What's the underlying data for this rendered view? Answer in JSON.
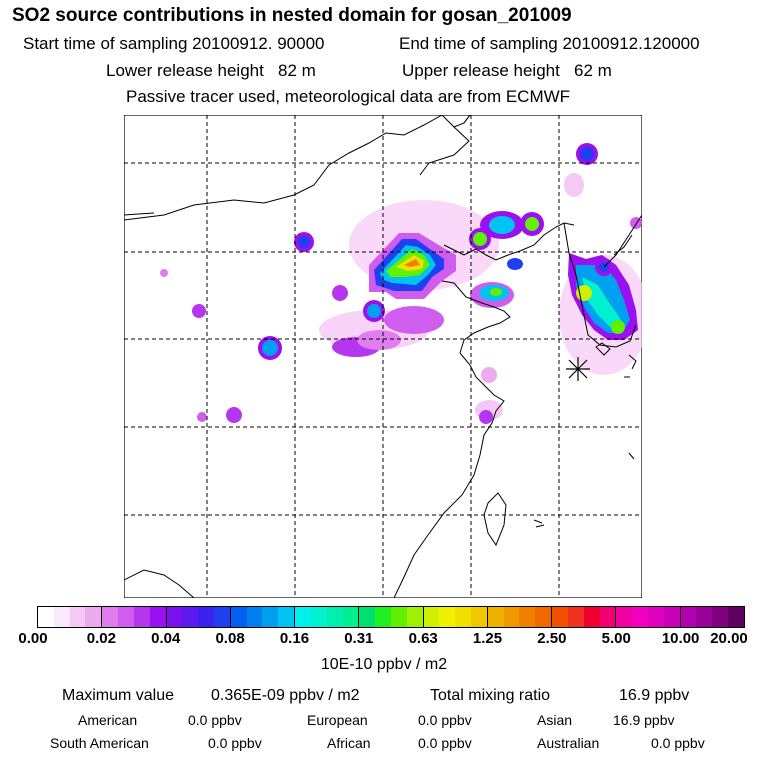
{
  "header": {
    "title": "SO2 source contributions in nested domain for gosan_201009",
    "start_label": "Start time of sampling 20100912. 90000",
    "end_label": "End time of sampling 20100912.120000",
    "lower_label": "Lower release height   82 m",
    "upper_label": "Upper release height   62 m",
    "note": "Passive tracer used, meteorological data are from ECMWF"
  },
  "legend": {
    "ticks": [
      "0.00",
      "0.02",
      "0.04",
      "0.08",
      "0.16",
      "0.31",
      "0.63",
      "1.25",
      "2.50",
      "5.00",
      "10.00",
      "20.00"
    ],
    "units": "10E-10 ppbv / m2",
    "colors": [
      [
        "#ffffff",
        "#fce8fc",
        "#f6c8f6",
        "#eeaaf0"
      ],
      [
        "#e07ef0",
        "#d05cf0",
        "#b636f0",
        "#9a10f0"
      ],
      [
        "#7a10f0",
        "#5a1af0",
        "#3a22f0",
        "#2040f0"
      ],
      [
        "#0060f0",
        "#0080f0",
        "#00a0f0",
        "#00c4f0"
      ],
      [
        "#00f0f0",
        "#00f0d0",
        "#00f0b0",
        "#00f090"
      ],
      [
        "#00e070",
        "#20f020",
        "#60f000",
        "#a0f000"
      ],
      [
        "#d0f000",
        "#f0f000",
        "#f0e000",
        "#f0c800"
      ],
      [
        "#f0b000",
        "#f09800",
        "#f08000",
        "#f06800"
      ],
      [
        "#f05000",
        "#f03020",
        "#f00030",
        "#f00070"
      ],
      [
        "#f000a0",
        "#f000c0",
        "#e000c0",
        "#c800b8"
      ],
      [
        "#b000b0",
        "#980098",
        "#800080",
        "#600060"
      ]
    ]
  },
  "stats": {
    "max_label": "Maximum value",
    "max_value": "0.365E-09 ppbv / m2",
    "total_label": "Total mixing ratio",
    "total_value": "16.9 ppbv",
    "american_label": "American",
    "american_value": "0.0 ppbv",
    "european_label": "European",
    "european_value": "0.0 ppbv",
    "asian_label": "Asian",
    "asian_value": "16.9 ppbv",
    "south_american_label": "South American",
    "south_american_value": "0.0 ppbv",
    "african_label": "African",
    "african_value": "0.0 ppbv",
    "australian_label": "Australian",
    "australian_value": "0.0 ppbv"
  }
}
